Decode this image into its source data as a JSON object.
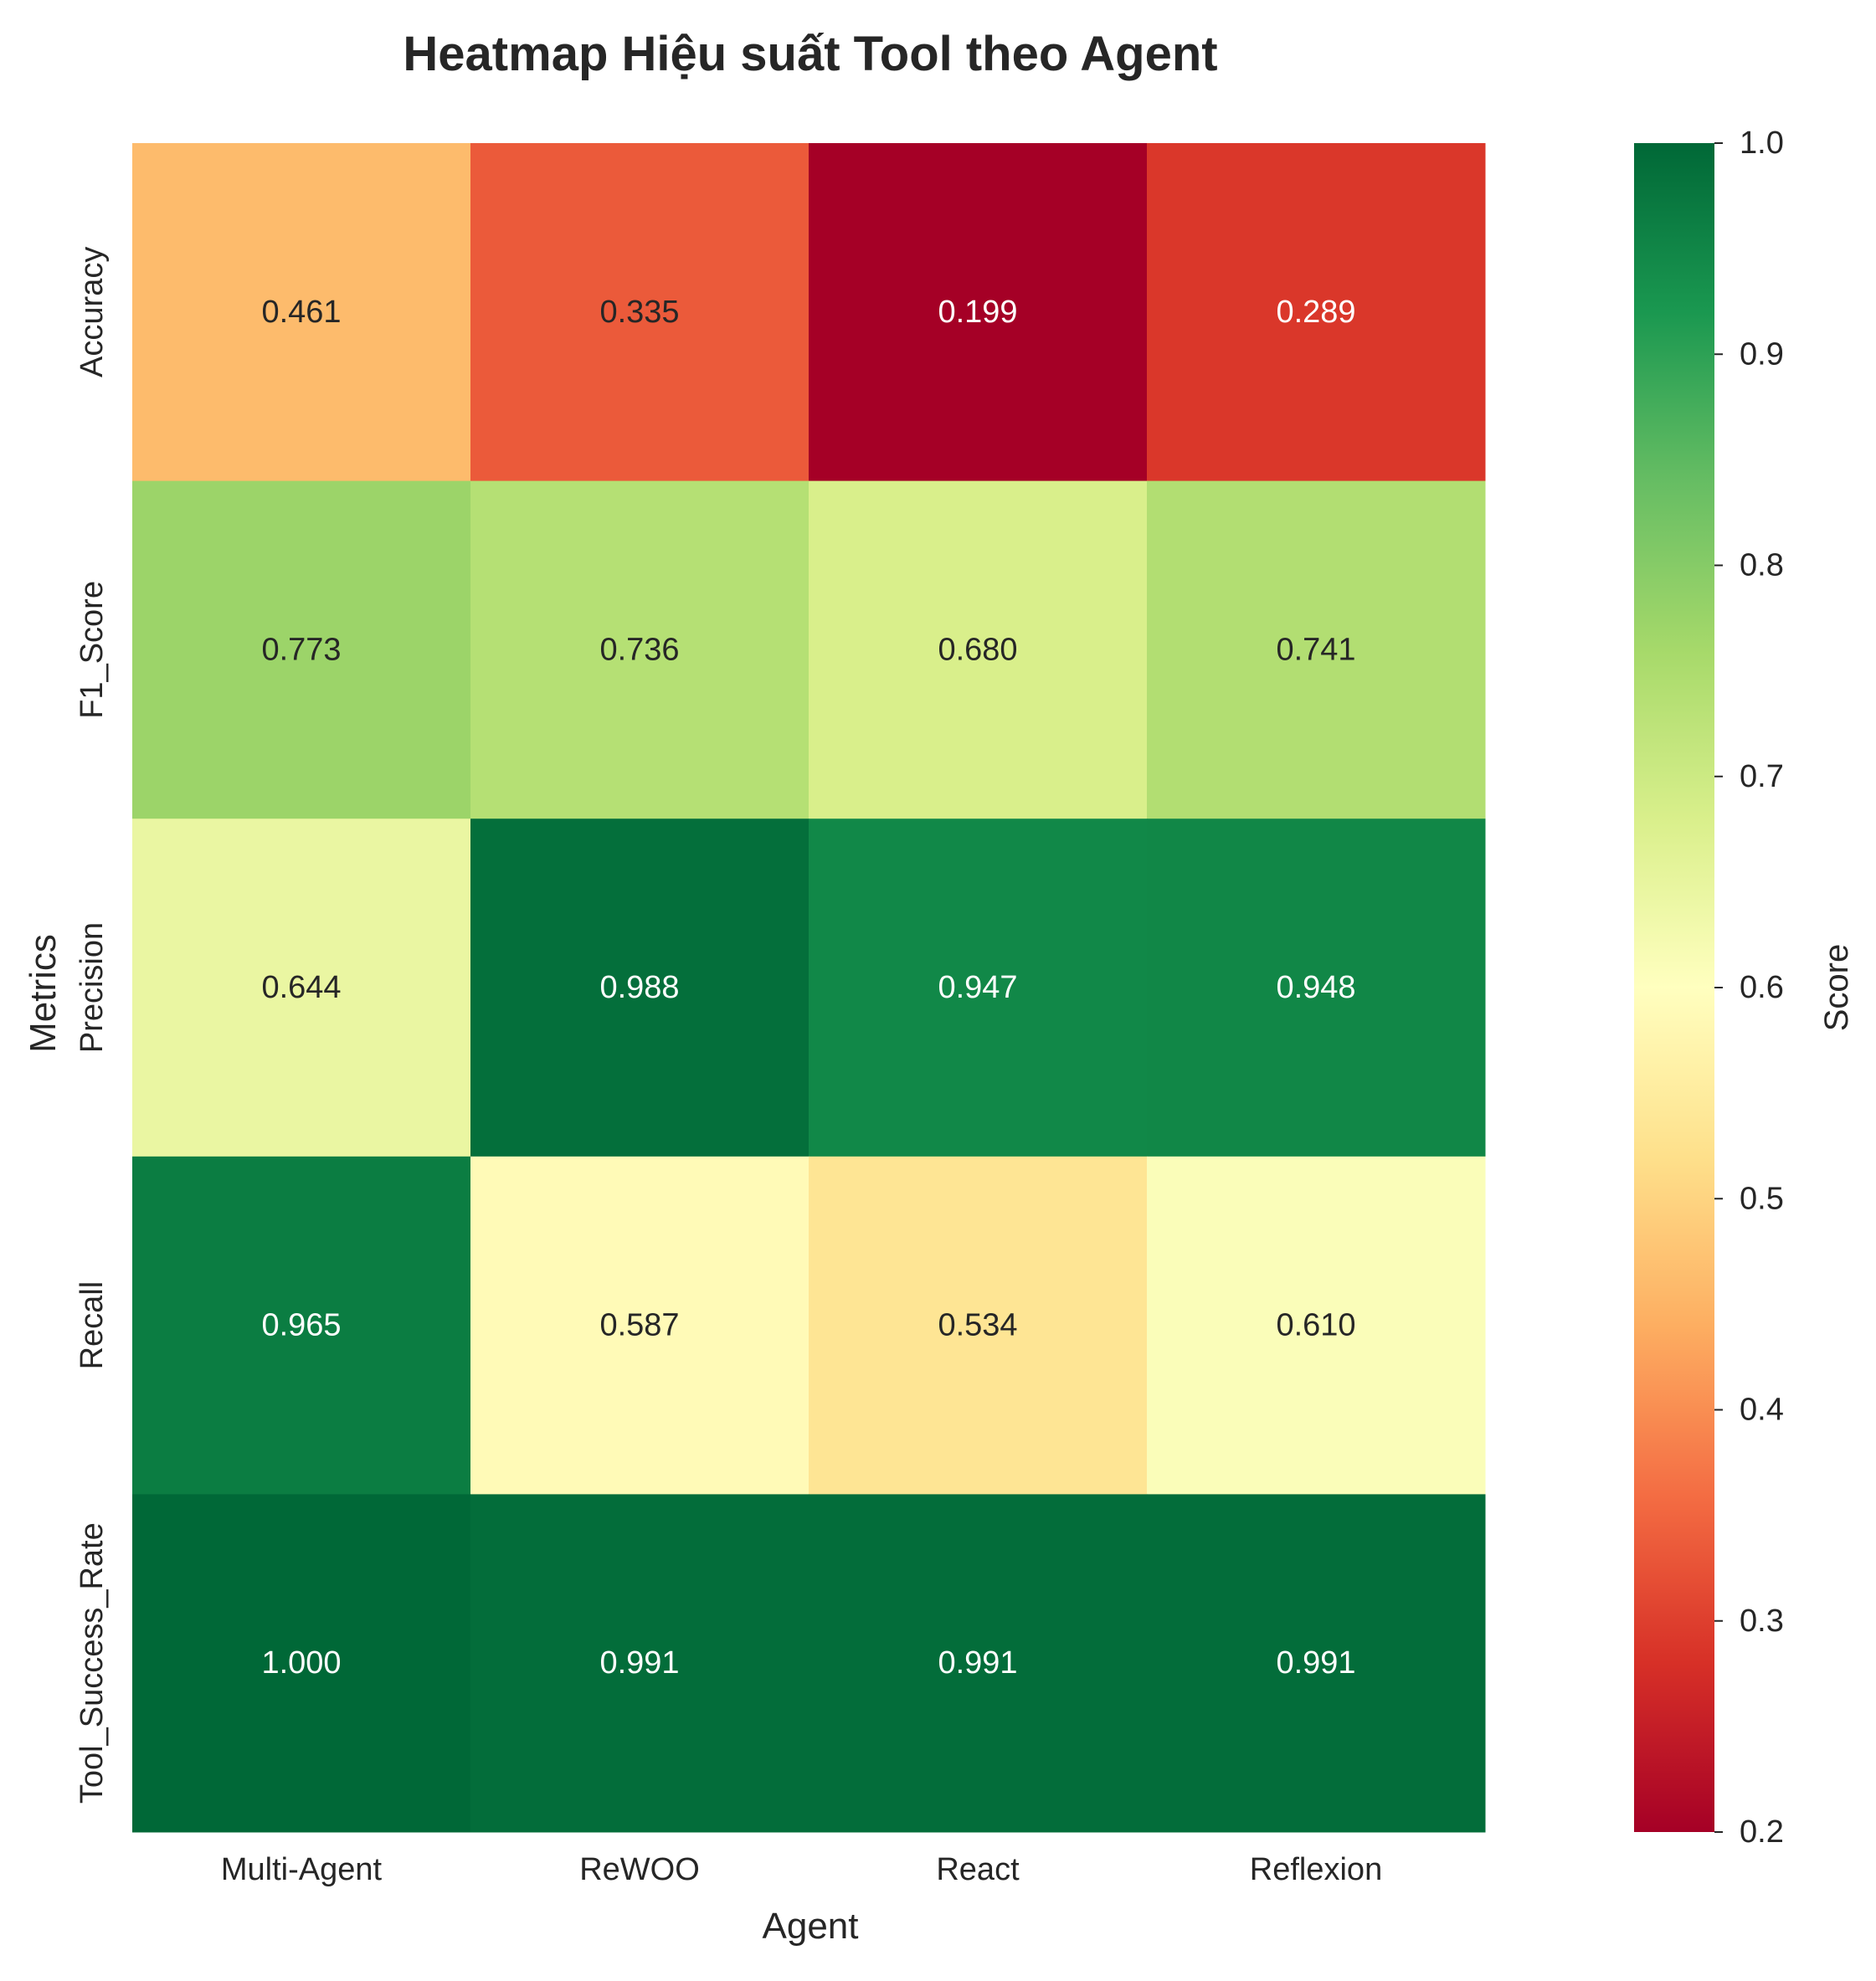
{
  "chart_data": {
    "type": "heatmap",
    "title": "Heatmap Hiệu suất Tool theo Agent",
    "xlabel": "Agent",
    "ylabel": "Metrics",
    "x_categories": [
      "Multi-Agent",
      "ReWOO",
      "React",
      "Reflexion"
    ],
    "y_categories": [
      "Accuracy",
      "F1_Score",
      "Precision",
      "Recall",
      "Tool_Success_Rate"
    ],
    "values": [
      [
        0.461,
        0.335,
        0.199,
        0.289
      ],
      [
        0.773,
        0.736,
        0.68,
        0.741
      ],
      [
        0.644,
        0.988,
        0.947,
        0.948
      ],
      [
        0.965,
        0.587,
        0.534,
        0.61
      ],
      [
        1.0,
        0.991,
        0.991,
        0.991
      ]
    ],
    "value_labels": [
      [
        "0.461",
        "0.335",
        "0.199",
        "0.289"
      ],
      [
        "0.773",
        "0.736",
        "0.680",
        "0.741"
      ],
      [
        "0.644",
        "0.988",
        "0.947",
        "0.948"
      ],
      [
        "0.965",
        "0.587",
        "0.534",
        "0.610"
      ],
      [
        "1.000",
        "0.991",
        "0.991",
        "0.991"
      ]
    ],
    "colormap": "RdYlGn",
    "colorbar": {
      "label": "Score",
      "min": 0.2,
      "max": 1.0,
      "ticks": [
        "0.2",
        "0.3",
        "0.4",
        "0.5",
        "0.6",
        "0.7",
        "0.8",
        "0.9",
        "1.0"
      ]
    }
  }
}
